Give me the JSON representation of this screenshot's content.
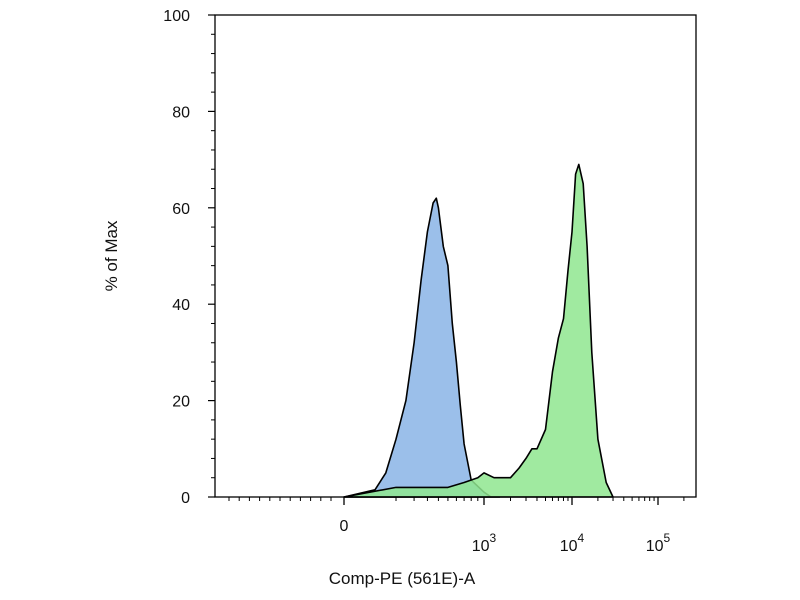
{
  "chart_data": {
    "type": "area",
    "title": "",
    "xlabel": "Comp-PE (561E)-A",
    "ylabel": "% of Max",
    "xscale": "biexponential",
    "ylim": [
      0,
      100
    ],
    "y_ticks": [
      0,
      20,
      40,
      60,
      80,
      100
    ],
    "x_ticks": [
      {
        "value": 0,
        "label": "0",
        "exp": ""
      },
      {
        "value": 1000,
        "label": "10",
        "exp": "3"
      },
      {
        "value": 10000,
        "label": "10",
        "exp": "4"
      },
      {
        "value": 100000,
        "label": "10",
        "exp": "5"
      }
    ],
    "grid": false,
    "series": [
      {
        "color": "#8ab4e6",
        "x": [
          0,
          30,
          60,
          100,
          150,
          200,
          250,
          300,
          350,
          380,
          400,
          450,
          500,
          550,
          600,
          650,
          700,
          800,
          1000,
          1200,
          1500
        ],
        "y": [
          0,
          1.5,
          5,
          12,
          20,
          32,
          45,
          55,
          61,
          62,
          60,
          52,
          48,
          36,
          28,
          19,
          11,
          3.5,
          1,
          0,
          0
        ]
      },
      {
        "color": "#8fe68f",
        "x": [
          0,
          100,
          200,
          500,
          700,
          900,
          1000,
          1300,
          1500,
          2000,
          2500,
          3000,
          3500,
          4000,
          5000,
          6000,
          7000,
          8000,
          9000,
          10000,
          11000,
          12000,
          13500,
          15000,
          17000,
          20000,
          25000,
          30000
        ],
        "y": [
          0,
          2,
          2,
          2,
          3,
          4,
          5,
          4,
          4,
          4,
          6,
          8,
          10,
          10,
          14,
          26,
          33,
          37,
          47,
          55,
          67,
          69,
          65,
          52,
          30,
          12,
          3,
          0
        ]
      }
    ]
  }
}
